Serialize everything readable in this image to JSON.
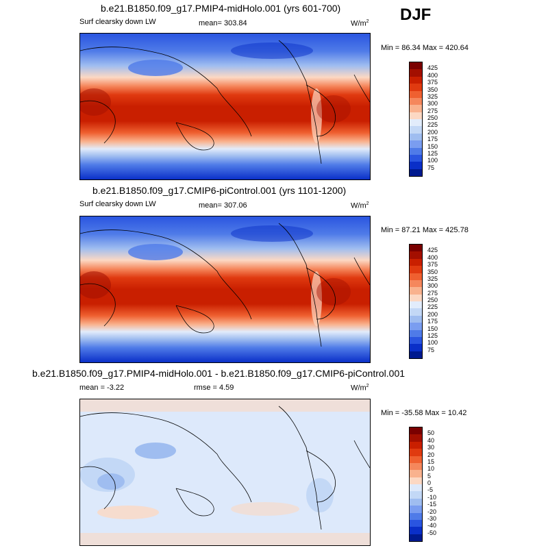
{
  "season": "DJF",
  "panels": [
    {
      "title": "b.e21.B1850.f09_g17.PMIP4-midHolo.001 (yrs 601-700)",
      "left_label": "Surf clearsky down LW",
      "stat_label": "mean= 303.84",
      "units": "W/m",
      "units_sup": "2",
      "minmax": "Min =  86.34 Max = 420.64",
      "colorbar": {
        "labels": [
          "425",
          "400",
          "375",
          "350",
          "325",
          "300",
          "275",
          "250",
          "225",
          "200",
          "175",
          "150",
          "125",
          "100",
          "75"
        ],
        "colors": [
          "#7a0000",
          "#a30f00",
          "#c91f00",
          "#e03a10",
          "#ef6030",
          "#f5875c",
          "#f9b28e",
          "#fcd8c3",
          "#e2ecfb",
          "#c3d8f6",
          "#9fbdf0",
          "#7a9df0",
          "#4f7be8",
          "#2a55e0",
          "#0a2fc8",
          "#001a8f"
        ]
      }
    },
    {
      "title": "b.e21.B1850.f09_g17.CMIP6-piControl.001 (yrs 1101-1200)",
      "left_label": "Surf clearsky down LW",
      "stat_label": "mean= 307.06",
      "units": "W/m",
      "units_sup": "2",
      "minmax": "Min =  87.21 Max = 425.78",
      "colorbar": {
        "labels": [
          "425",
          "400",
          "375",
          "350",
          "325",
          "300",
          "275",
          "250",
          "225",
          "200",
          "175",
          "150",
          "125",
          "100",
          "75"
        ],
        "colors": [
          "#7a0000",
          "#a30f00",
          "#c91f00",
          "#e03a10",
          "#ef6030",
          "#f5875c",
          "#f9b28e",
          "#fcd8c3",
          "#e2ecfb",
          "#c3d8f6",
          "#9fbdf0",
          "#7a9df0",
          "#4f7be8",
          "#2a55e0",
          "#0a2fc8",
          "#001a8f"
        ]
      }
    },
    {
      "title": "b.e21.B1850.f09_g17.PMIP4-midHolo.001 - b.e21.B1850.f09_g17.CMIP6-piControl.001",
      "left_label": "mean =  -3.22",
      "stat_label": "rmse =   4.59",
      "units": "W/m",
      "units_sup": "2",
      "minmax": "Min = -35.58 Max =  10.42",
      "colorbar": {
        "labels": [
          "50",
          "40",
          "30",
          "20",
          "15",
          "10",
          "5",
          "0",
          "-5",
          "-10",
          "-15",
          "-20",
          "-30",
          "-40",
          "-50"
        ],
        "colors": [
          "#7a0000",
          "#a30f00",
          "#c91f00",
          "#e03a10",
          "#ef6030",
          "#f5875c",
          "#f9b28e",
          "#fcd8c3",
          "#dde9fb",
          "#c3d8f6",
          "#9fbdf0",
          "#7a9df0",
          "#4f7be8",
          "#2a55e0",
          "#0a2fc8",
          "#001a8f"
        ]
      }
    }
  ]
}
